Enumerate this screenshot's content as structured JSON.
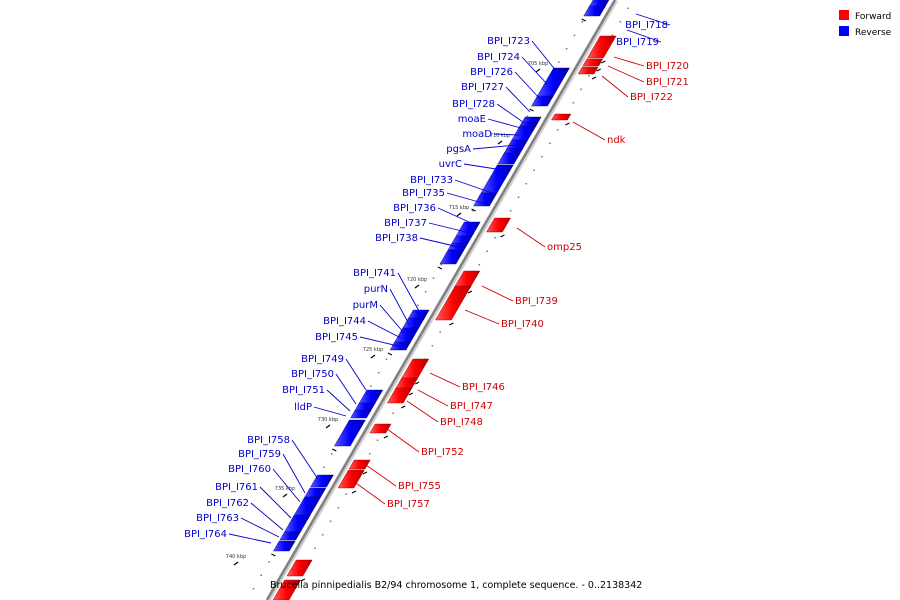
{
  "footer": "Brucella pinnipedialis B2/94 chromosome 1, complete sequence. - 0..2138342",
  "legend": [
    {
      "label": "Forward",
      "color": "#ff0000"
    },
    {
      "label": "Reverse",
      "color": "#0000ff"
    }
  ],
  "kbp_ticks": [
    "705 kbp",
    "710 kbp",
    "715 kbp",
    "720 kbp",
    "725 kbp",
    "730 kbp",
    "735 kbp",
    "740 kbp"
  ],
  "reverse_labels": [
    "BPI_I718",
    "BPI_I719",
    "BPI_I723",
    "BPI_I724",
    "BPI_I726",
    "BPI_I727",
    "BPI_I728",
    "moaE",
    "moaD",
    "pgsA",
    "uvrC",
    "BPI_I733",
    "BPI_I735",
    "BPI_I736",
    "BPI_I737",
    "BPI_I738",
    "BPI_I741",
    "purN",
    "purM",
    "BPI_I744",
    "BPI_I745",
    "BPI_I749",
    "BPI_I750",
    "BPI_I751",
    "lldP",
    "BPI_I758",
    "BPI_I759",
    "BPI_I760",
    "BPI_I761",
    "BPI_I762",
    "BPI_I763",
    "BPI_I764"
  ],
  "forward_labels": [
    "BPI_I720",
    "BPI_I721",
    "BPI_I722",
    "ndk",
    "omp25",
    "BPI_I739",
    "BPI_I740",
    "BPI_I746",
    "BPI_I747",
    "BPI_I748",
    "BPI_I752",
    "BPI_I755",
    "BPI_I757"
  ]
}
